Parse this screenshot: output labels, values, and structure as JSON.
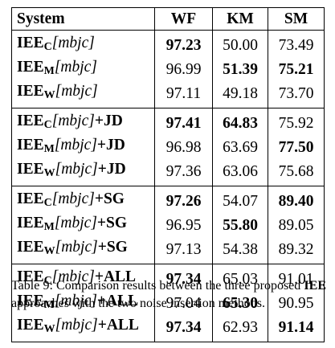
{
  "table": {
    "headers": [
      "System",
      "WF",
      "KM",
      "SM"
    ],
    "rows": [
      {
        "prefix": "IEE",
        "sub": "C",
        "param": "[mbjc]",
        "suffix": "",
        "wf": "97.23",
        "km": "50.00",
        "sm": "73.49",
        "bold": [
          true,
          false,
          false
        ]
      },
      {
        "prefix": "IEE",
        "sub": "M",
        "param": "[mbjc]",
        "suffix": "",
        "wf": "96.99",
        "km": "51.39",
        "sm": "75.21",
        "bold": [
          false,
          true,
          true
        ]
      },
      {
        "prefix": "IEE",
        "sub": "W",
        "param": "[mbjc]",
        "suffix": "",
        "wf": "97.11",
        "km": "49.18",
        "sm": "73.70",
        "bold": [
          false,
          false,
          false
        ]
      },
      {
        "prefix": "IEE",
        "sub": "C",
        "param": "[mbjc]",
        "suffix": "+JD",
        "wf": "97.41",
        "km": "64.83",
        "sm": "75.92",
        "bold": [
          true,
          true,
          false
        ]
      },
      {
        "prefix": "IEE",
        "sub": "M",
        "param": "[mbjc]",
        "suffix": "+JD",
        "wf": "96.98",
        "km": "63.69",
        "sm": "77.50",
        "bold": [
          false,
          false,
          true
        ]
      },
      {
        "prefix": "IEE",
        "sub": "W",
        "param": "[mbjc]",
        "suffix": "+JD",
        "wf": "97.36",
        "km": "63.06",
        "sm": "75.68",
        "bold": [
          false,
          false,
          false
        ]
      },
      {
        "prefix": "IEE",
        "sub": "C",
        "param": "[mbjc]",
        "suffix": "+SG",
        "wf": "97.26",
        "km": "54.07",
        "sm": "89.40",
        "bold": [
          true,
          false,
          true
        ]
      },
      {
        "prefix": "IEE",
        "sub": "M",
        "param": "[mbjc]",
        "suffix": "+SG",
        "wf": "96.95",
        "km": "55.80",
        "sm": "89.05",
        "bold": [
          false,
          true,
          false
        ]
      },
      {
        "prefix": "IEE",
        "sub": "W",
        "param": "[mbjc]",
        "suffix": "+SG",
        "wf": "97.13",
        "km": "54.38",
        "sm": "89.32",
        "bold": [
          false,
          false,
          false
        ]
      },
      {
        "prefix": "IEE",
        "sub": "C",
        "param": "[mbjc]",
        "suffix": "+ALL",
        "wf": "97.34",
        "km": "65.03",
        "sm": "91.01",
        "bold": [
          true,
          false,
          false
        ]
      },
      {
        "prefix": "IEE",
        "sub": "M",
        "param": "[mbjc]",
        "suffix": "+ALL",
        "wf": "97.04",
        "km": "65.30",
        "sm": "90.95",
        "bold": [
          false,
          true,
          false
        ]
      },
      {
        "prefix": "IEE",
        "sub": "W",
        "param": "[mbjc]",
        "suffix": "+ALL",
        "wf": "97.34",
        "km": "62.93",
        "sm": "91.14",
        "bold": [
          true,
          false,
          true
        ]
      }
    ]
  },
  "caption": {
    "label": "Table 9: Comparison results between the three proposed ",
    "bold": "IEE",
    "rest": " approaches with the two noise insertion methods."
  }
}
